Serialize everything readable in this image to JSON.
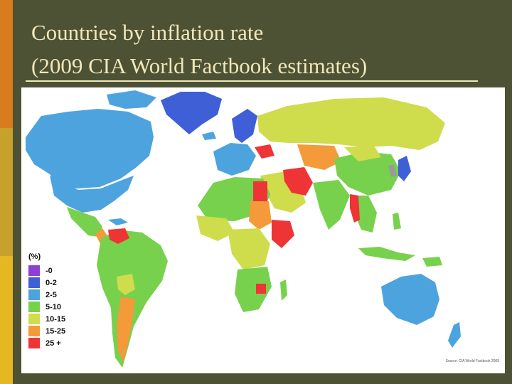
{
  "slide": {
    "title_line1": "Countries by inflation rate",
    "title_line2": " (2009 CIA World Factbook estimates)"
  },
  "legend": {
    "title": "(%)",
    "items": [
      {
        "label": "-0",
        "color": "#8e3fd4"
      },
      {
        "label": "0-2",
        "color": "#3e5fd6"
      },
      {
        "label": "2-5",
        "color": "#4da3de"
      },
      {
        "label": "5-10",
        "color": "#77d14c"
      },
      {
        "label": "10-15",
        "color": "#cfdc4c"
      },
      {
        "label": "15-25",
        "color": "#f49a3a"
      },
      {
        "label": "25 +",
        "color": "#ee3434"
      }
    ]
  },
  "credit": "Source: CIA World Factbook 2009",
  "colors": {
    "background": "#4d5235",
    "title_text": "#f1e7ba",
    "accent_1": "#d97c1e",
    "accent_2": "#c8a12c",
    "accent_3": "#e5b822",
    "no_data": "#9a9a9a"
  }
}
